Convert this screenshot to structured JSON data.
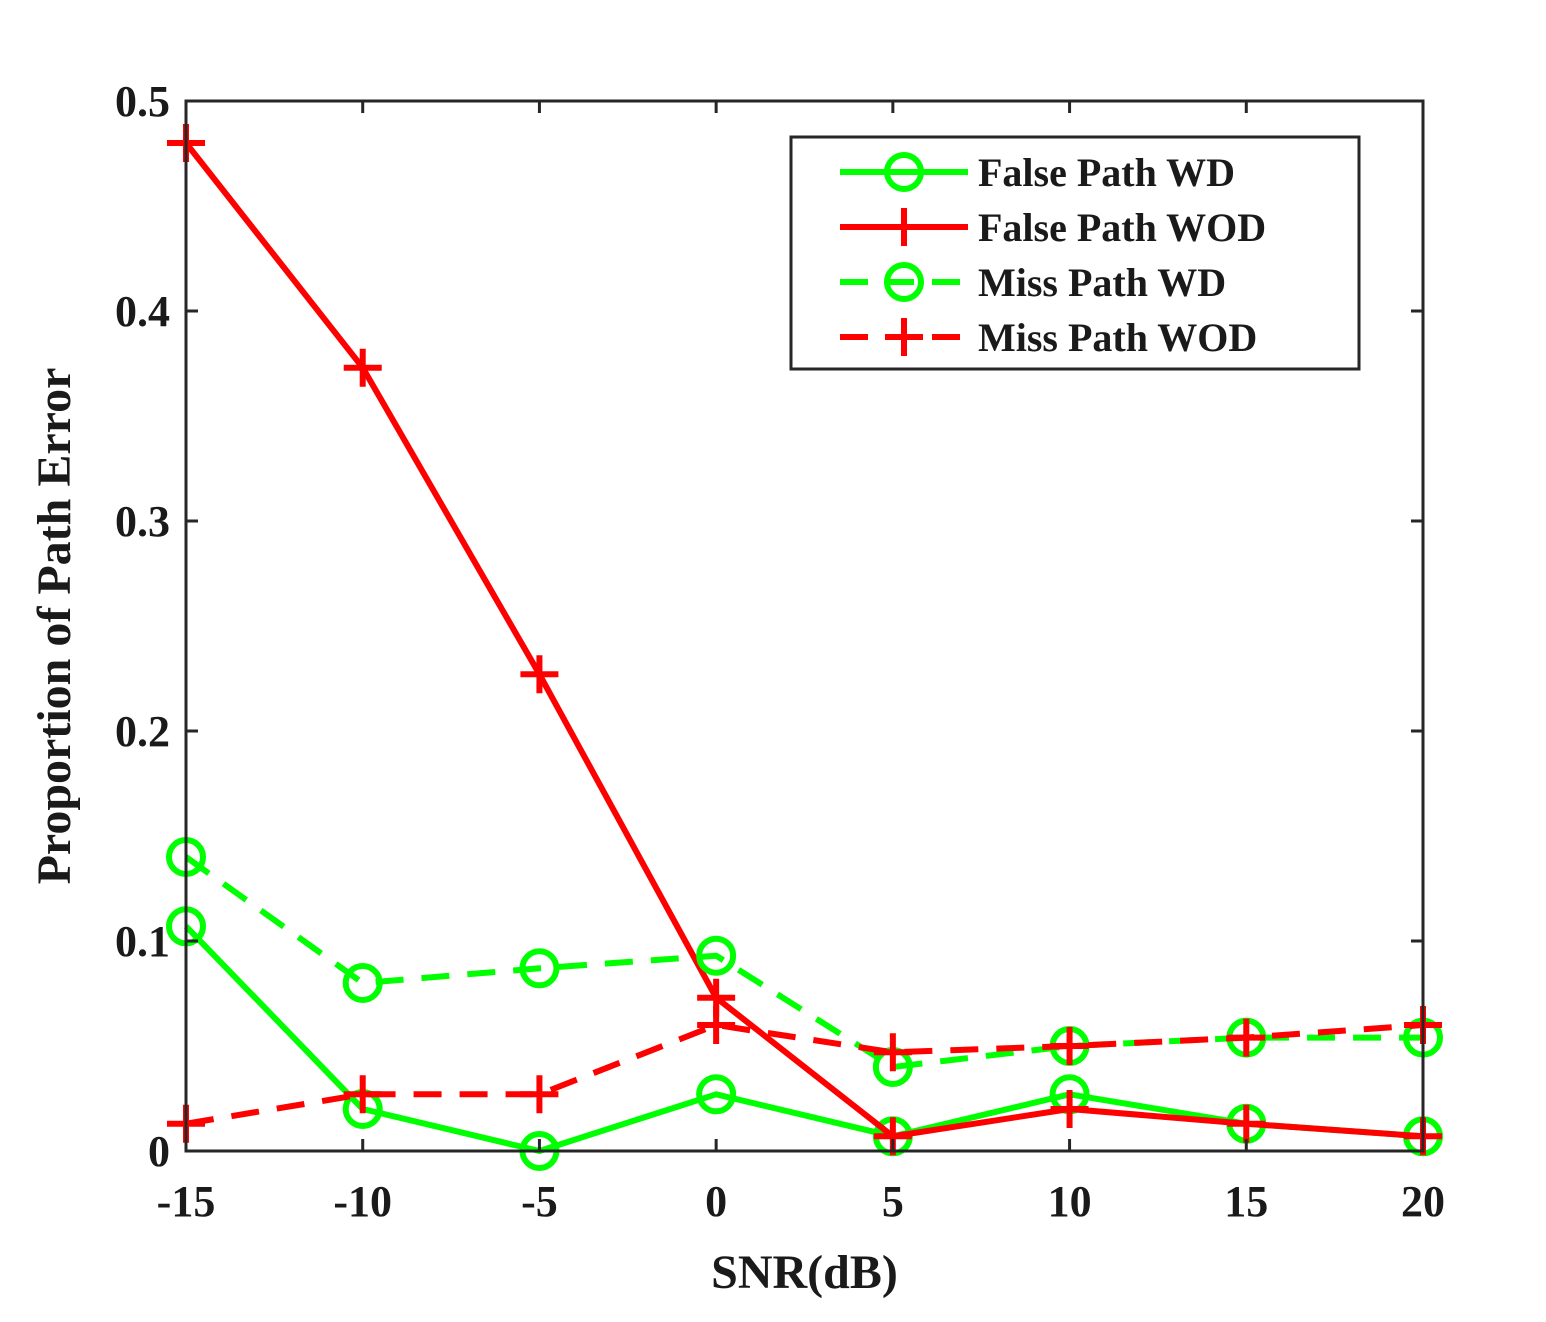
{
  "chart_data": {
    "type": "line",
    "title": "",
    "xlabel": "SNR(dB)",
    "ylabel": "Proportion of Path Error",
    "xlim": [
      -15,
      20
    ],
    "ylim": [
      0,
      0.5
    ],
    "x": [
      -15,
      -10,
      -5,
      0,
      5,
      10,
      15,
      20
    ],
    "xticks": [
      -15,
      -10,
      -5,
      0,
      5,
      10,
      15,
      20
    ],
    "xtick_labels": [
      "-15",
      "-10",
      "-5",
      "0",
      "5",
      "10",
      "15",
      "20"
    ],
    "yticks": [
      0,
      0.1,
      0.2,
      0.3,
      0.4,
      0.5
    ],
    "ytick_labels": [
      "0",
      "0.1",
      "0.2",
      "0.3",
      "0.4",
      "0.5"
    ],
    "grid": false,
    "legend_position": "top-right",
    "series": [
      {
        "name": "False Path WD",
        "color": "#00ff00",
        "line": "solid",
        "marker": "circle",
        "values": [
          0.107,
          0.02,
          0.0,
          0.027,
          0.007,
          0.027,
          0.013,
          0.007
        ]
      },
      {
        "name": "False Path WOD",
        "color": "#ff0000",
        "line": "solid",
        "marker": "plus",
        "values": [
          0.48,
          0.373,
          0.227,
          0.073,
          0.007,
          0.02,
          0.013,
          0.007
        ]
      },
      {
        "name": "Miss Path WD",
        "color": "#00ff00",
        "line": "dashed",
        "marker": "circle",
        "values": [
          0.14,
          0.08,
          0.087,
          0.093,
          0.04,
          0.05,
          0.054,
          0.054
        ]
      },
      {
        "name": "Miss Path WOD",
        "color": "#ff0000",
        "line": "dashed",
        "marker": "plus",
        "values": [
          0.013,
          0.027,
          0.027,
          0.06,
          0.047,
          0.05,
          0.054,
          0.06
        ]
      }
    ]
  }
}
